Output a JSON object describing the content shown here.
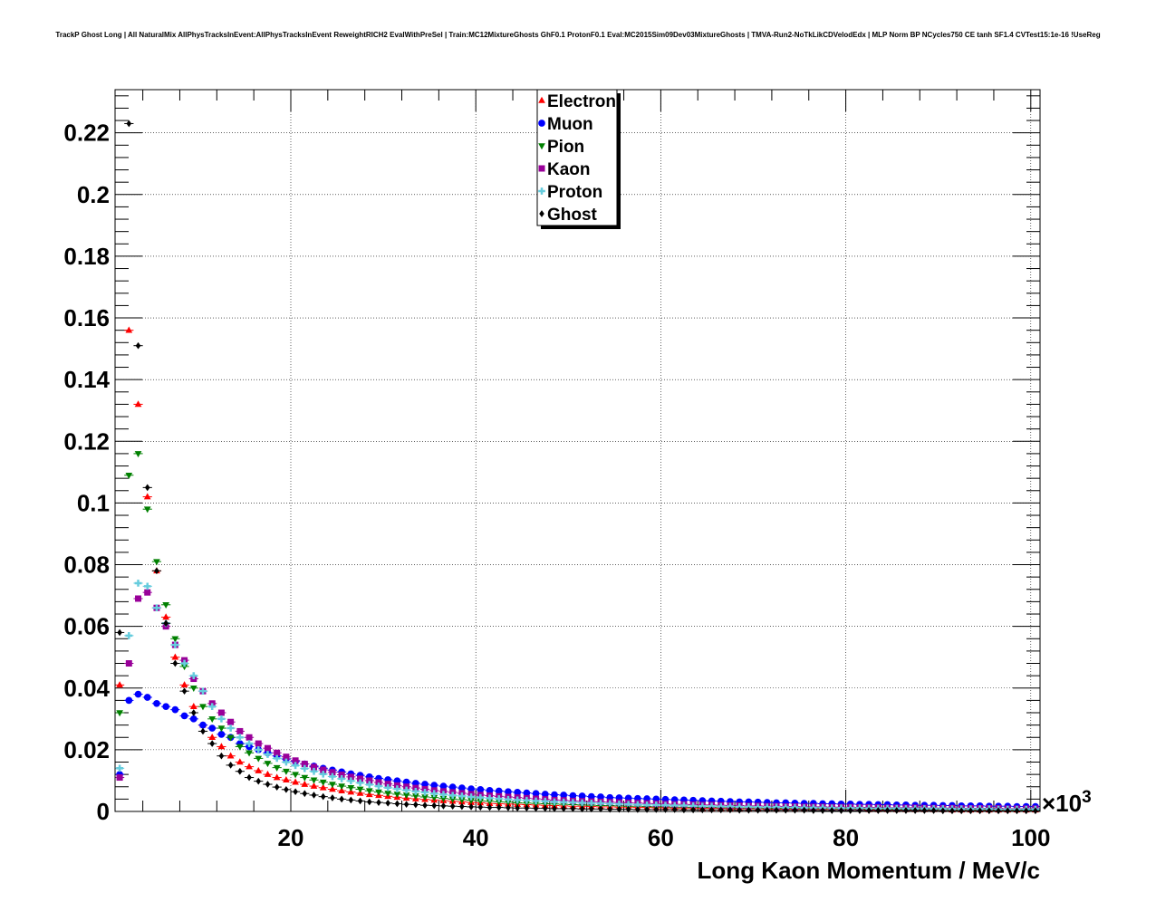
{
  "chart_data": {
    "type": "scatter",
    "title": "TrackP Ghost Long | All NaturalMix AllPhysTracksInEvent:AllPhysTracksInEvent ReweightRICH2 EvalWithPreSel | Train:MC12MixtureGhosts GhF0.1 ProtonF0.1 Eval:MC2015Sim09Dev03MixtureGhosts | TMVA-Run2-NoTkLikCDVelodEdx | MLP Norm BP NCycles750 CE tanh SF1.4 CVTest15:1e-16 !UseReg",
    "xlabel": "Long Kaon Momentum / MeV/c",
    "ylabel": "",
    "x_exponent_label": "×10",
    "x_exponent_power": "3",
    "xlim": [
      1,
      101
    ],
    "ylim": [
      0,
      0.234
    ],
    "x_ticks": [
      20,
      40,
      60,
      80,
      100
    ],
    "x_tick_labels": [
      "20",
      "40",
      "60",
      "80",
      "100"
    ],
    "y_ticks": [
      0,
      0.02,
      0.04,
      0.06,
      0.08,
      0.1,
      0.12,
      0.14,
      0.16,
      0.18,
      0.2,
      0.22
    ],
    "y_tick_labels": [
      "0",
      "0.02",
      "0.04",
      "0.06",
      "0.08",
      "0.1",
      "0.12",
      "0.14",
      "0.16",
      "0.18",
      "0.2",
      "0.22"
    ],
    "grid": true,
    "legend_position": "top-center",
    "bin_centers_note": "100 bins from 1 to 101 (x10^3 MeV/c); x = 1.5, 2.5, ... 100.5",
    "series": [
      {
        "name": "Electron",
        "color": "#ff0000",
        "marker": "triangle-up",
        "values": [
          0.041,
          0.156,
          0.132,
          0.102,
          0.078,
          0.063,
          0.05,
          0.041,
          0.034,
          0.028,
          0.024,
          0.021,
          0.018,
          0.016,
          0.0145,
          0.0132,
          0.012,
          0.011,
          0.0102,
          0.0095,
          0.0088,
          0.0082,
          0.0077,
          0.0072,
          0.0067,
          0.0063,
          0.0059,
          0.0055,
          0.0052,
          0.0049,
          0.0046,
          0.0043,
          0.0041,
          0.0039,
          0.0037,
          0.0035,
          0.0033,
          0.0031,
          0.0029,
          0.0028,
          0.0026,
          0.0025,
          0.0024,
          0.0023,
          0.0022,
          0.0021,
          0.002,
          0.0019,
          0.0018,
          0.0017,
          0.0017,
          0.0016,
          0.0015,
          0.0015,
          0.0014,
          0.0014,
          0.0013,
          0.0013,
          0.0012,
          0.0012,
          0.0011,
          0.0011,
          0.0011,
          0.001,
          0.001,
          0.001,
          0.0009,
          0.0009,
          0.0009,
          0.0009,
          0.0008,
          0.0008,
          0.0008,
          0.0008,
          0.0008,
          0.0007,
          0.0007,
          0.0007,
          0.0007,
          0.0007,
          0.0007,
          0.0006,
          0.0006,
          0.0006,
          0.0006,
          0.0006,
          0.0006,
          0.0006,
          0.0006,
          0.0006,
          0.0005,
          0.0005,
          0.0005,
          0.0005,
          0.0005,
          0.0005,
          0.0005,
          0.0005,
          0.0005,
          0.0005
        ]
      },
      {
        "name": "Muon",
        "color": "#0000ff",
        "marker": "circle",
        "values": [
          0.012,
          0.036,
          0.038,
          0.037,
          0.035,
          0.034,
          0.033,
          0.031,
          0.03,
          0.028,
          0.027,
          0.025,
          0.024,
          0.022,
          0.021,
          0.02,
          0.019,
          0.018,
          0.017,
          0.0162,
          0.0154,
          0.0147,
          0.014,
          0.0134,
          0.0128,
          0.0122,
          0.0117,
          0.0112,
          0.0107,
          0.0103,
          0.0099,
          0.0095,
          0.0091,
          0.0088,
          0.0085,
          0.0082,
          0.0079,
          0.0076,
          0.0073,
          0.0071,
          0.0068,
          0.0066,
          0.0064,
          0.0062,
          0.006,
          0.0058,
          0.0056,
          0.0054,
          0.0053,
          0.0051,
          0.005,
          0.0048,
          0.0047,
          0.0045,
          0.0044,
          0.0043,
          0.0042,
          0.0041,
          0.004,
          0.0039,
          0.0038,
          0.0037,
          0.0036,
          0.0035,
          0.0034,
          0.0033,
          0.0032,
          0.0031,
          0.0031,
          0.003,
          0.0029,
          0.0028,
          0.0028,
          0.0027,
          0.0026,
          0.0026,
          0.0025,
          0.0025,
          0.0024,
          0.0024,
          0.0023,
          0.0023,
          0.0022,
          0.0022,
          0.0021,
          0.0021,
          0.002,
          0.002,
          0.002,
          0.0019,
          0.0019,
          0.0018,
          0.0018,
          0.0018,
          0.0017,
          0.0017,
          0.0017,
          0.0016,
          0.0016,
          0.0016
        ]
      },
      {
        "name": "Pion",
        "color": "#008000",
        "marker": "triangle-down",
        "values": [
          0.032,
          0.109,
          0.116,
          0.098,
          0.081,
          0.067,
          0.056,
          0.047,
          0.04,
          0.034,
          0.03,
          0.027,
          0.024,
          0.021,
          0.019,
          0.0172,
          0.0156,
          0.0142,
          0.013,
          0.012,
          0.011,
          0.0102,
          0.0095,
          0.0088,
          0.0082,
          0.0077,
          0.0072,
          0.0067,
          0.0063,
          0.0059,
          0.0056,
          0.0053,
          0.005,
          0.0047,
          0.0045,
          0.0042,
          0.004,
          0.0038,
          0.0036,
          0.0034,
          0.0033,
          0.0031,
          0.003,
          0.0028,
          0.0027,
          0.0026,
          0.0025,
          0.0024,
          0.0023,
          0.0022,
          0.0021,
          0.002,
          0.0019,
          0.0019,
          0.0018,
          0.0017,
          0.0017,
          0.0016,
          0.0015,
          0.0015,
          0.0014,
          0.0014,
          0.0013,
          0.0013,
          0.0013,
          0.0012,
          0.0012,
          0.0011,
          0.0011,
          0.0011,
          0.001,
          0.001,
          0.001,
          0.001,
          0.0009,
          0.0009,
          0.0009,
          0.0009,
          0.0008,
          0.0008,
          0.0008,
          0.0008,
          0.0008,
          0.0007,
          0.0007,
          0.0007,
          0.0007,
          0.0007,
          0.0007,
          0.0006,
          0.0006,
          0.0006,
          0.0006,
          0.0006,
          0.0006,
          0.0006,
          0.0006,
          0.0005,
          0.0005,
          0.0005
        ]
      },
      {
        "name": "Kaon",
        "color": "#990099",
        "marker": "square",
        "values": [
          0.011,
          0.048,
          0.069,
          0.071,
          0.066,
          0.06,
          0.054,
          0.049,
          0.043,
          0.039,
          0.035,
          0.032,
          0.029,
          0.026,
          0.024,
          0.022,
          0.0205,
          0.019,
          0.0177,
          0.0165,
          0.0154,
          0.0144,
          0.0135,
          0.0127,
          0.0119,
          0.0112,
          0.0106,
          0.01,
          0.0094,
          0.0089,
          0.0084,
          0.008,
          0.0076,
          0.0072,
          0.0068,
          0.0065,
          0.0062,
          0.0059,
          0.0056,
          0.0053,
          0.0051,
          0.0049,
          0.0047,
          0.0045,
          0.0043,
          0.0041,
          0.0039,
          0.0037,
          0.0036,
          0.0034,
          0.0033,
          0.0032,
          0.0031,
          0.003,
          0.0029,
          0.0028,
          0.0027,
          0.0026,
          0.0025,
          0.0024,
          0.0023,
          0.0023,
          0.0022,
          0.0021,
          0.0021,
          0.002,
          0.0019,
          0.0019,
          0.0018,
          0.0018,
          0.0017,
          0.0017,
          0.0016,
          0.0016,
          0.0015,
          0.0015,
          0.0015,
          0.0014,
          0.0014,
          0.0014,
          0.0013,
          0.0013,
          0.0013,
          0.0012,
          0.0012,
          0.0012,
          0.0012,
          0.0011,
          0.0011,
          0.0011,
          0.0011,
          0.001,
          0.001,
          0.001,
          0.001,
          0.001,
          0.0009,
          0.0009,
          0.0009,
          0.0009
        ]
      },
      {
        "name": "Proton",
        "color": "#66ccdd",
        "marker": "cross",
        "values": [
          0.014,
          0.057,
          0.074,
          0.073,
          0.066,
          0.061,
          0.054,
          0.048,
          0.044,
          0.039,
          0.034,
          0.03,
          0.027,
          0.024,
          0.022,
          0.02,
          0.0185,
          0.0172,
          0.016,
          0.0149,
          0.0139,
          0.013,
          0.0121,
          0.0113,
          0.0106,
          0.0099,
          0.0093,
          0.0087,
          0.0082,
          0.0077,
          0.0073,
          0.0069,
          0.0065,
          0.0062,
          0.0058,
          0.0055,
          0.0052,
          0.005,
          0.0047,
          0.0045,
          0.0043,
          0.0041,
          0.0039,
          0.0037,
          0.0036,
          0.0034,
          0.0033,
          0.0031,
          0.003,
          0.0029,
          0.0028,
          0.0027,
          0.0026,
          0.0025,
          0.0024,
          0.0023,
          0.0022,
          0.0021,
          0.0021,
          0.002,
          0.0019,
          0.0019,
          0.0018,
          0.0017,
          0.0017,
          0.0016,
          0.0016,
          0.0015,
          0.0015,
          0.0014,
          0.0014,
          0.0014,
          0.0013,
          0.0013,
          0.0012,
          0.0012,
          0.0012,
          0.0011,
          0.0011,
          0.0011,
          0.0011,
          0.001,
          0.001,
          0.001,
          0.001,
          0.0009,
          0.0009,
          0.0009,
          0.0009,
          0.0009,
          0.0008,
          0.0008,
          0.0008,
          0.0008,
          0.0008,
          0.0007,
          0.0007,
          0.0007,
          0.0007,
          0.0007
        ]
      },
      {
        "name": "Ghost",
        "color": "#000000",
        "marker": "diamond",
        "values": [
          0.058,
          0.223,
          0.151,
          0.105,
          0.078,
          0.061,
          0.048,
          0.039,
          0.032,
          0.026,
          0.022,
          0.018,
          0.015,
          0.013,
          0.011,
          0.0098,
          0.0088,
          0.0079,
          0.0071,
          0.0064,
          0.0058,
          0.0053,
          0.0048,
          0.0044,
          0.004,
          0.0037,
          0.0034,
          0.0031,
          0.0029,
          0.0027,
          0.0025,
          0.0023,
          0.0022,
          0.002,
          0.0019,
          0.0018,
          0.0017,
          0.0016,
          0.0015,
          0.0014,
          0.0013,
          0.0013,
          0.0012,
          0.0011,
          0.0011,
          0.001,
          0.001,
          0.0009,
          0.0009,
          0.0009,
          0.0008,
          0.0008,
          0.0008,
          0.0007,
          0.0007,
          0.0007,
          0.0006,
          0.0006,
          0.0006,
          0.0006,
          0.0006,
          0.0005,
          0.0005,
          0.0005,
          0.0005,
          0.0005,
          0.0005,
          0.0004,
          0.0004,
          0.0004,
          0.0004,
          0.0004,
          0.0004,
          0.0004,
          0.0004,
          0.0003,
          0.0003,
          0.0003,
          0.0003,
          0.0003,
          0.0003,
          0.0003,
          0.0003,
          0.0003,
          0.0003,
          0.0003,
          0.0003,
          0.0003,
          0.0003,
          0.0002,
          0.0002,
          0.0002,
          0.0002,
          0.0002,
          0.0002,
          0.0002,
          0.0002,
          0.0002,
          0.0002,
          0.0002
        ]
      }
    ]
  }
}
